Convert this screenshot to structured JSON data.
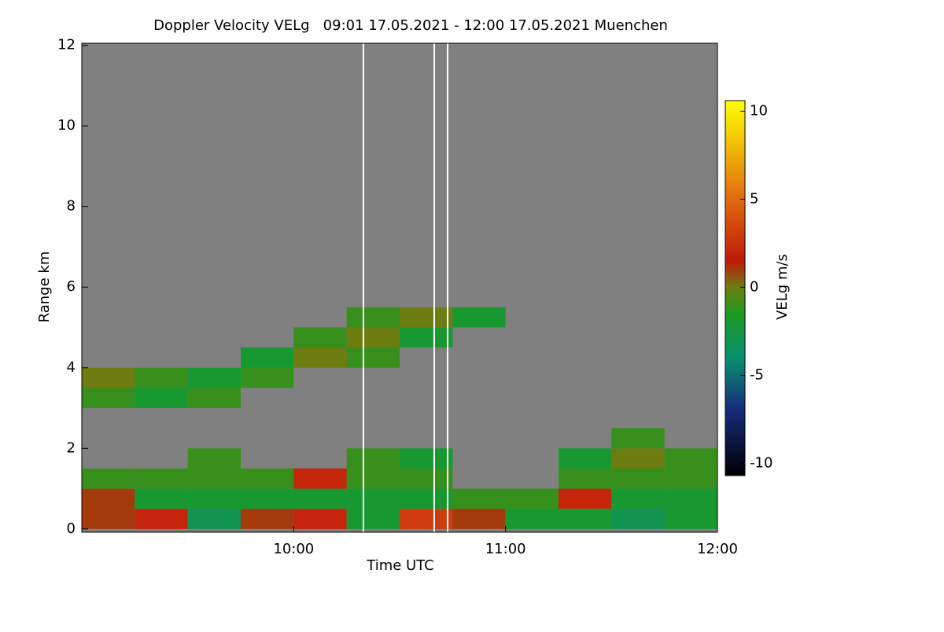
{
  "chart_data": {
    "type": "heatmap",
    "title": "Doppler Velocity VELg   09:01 17.05.2021 - 12:00 17.05.2021 Muenchen",
    "x_label": "Time UTC",
    "y_label": "Range km",
    "colorbar_label": "VELg m/s",
    "x_bins": [
      9,
      9.25,
      9.5,
      9.75,
      10,
      10.25,
      10.5,
      10.75,
      11,
      11.25,
      11.5,
      11.75,
      12
    ],
    "y_bins": [
      0,
      0.5,
      1,
      1.5,
      2,
      2.5,
      3,
      3.5,
      4,
      4.5,
      5,
      5.5,
      6
    ],
    "z": [
      [
        1,
        2,
        -3,
        1,
        2,
        -2,
        3,
        1,
        -2,
        -2,
        -3,
        -2
      ],
      [
        1,
        -2,
        -2,
        -2,
        -2,
        -2,
        -2,
        -1,
        -1,
        2,
        -2,
        -2
      ],
      [
        -1,
        -1,
        -1,
        -1,
        2,
        -1,
        -1,
        null,
        null,
        -1,
        -1,
        -1
      ],
      [
        null,
        null,
        -1,
        null,
        null,
        -1,
        -2,
        null,
        null,
        -2,
        0,
        -1
      ],
      [
        null,
        null,
        null,
        null,
        null,
        null,
        null,
        null,
        null,
        null,
        -1,
        null
      ],
      [
        null,
        null,
        null,
        null,
        null,
        null,
        null,
        null,
        null,
        null,
        null,
        null
      ],
      [
        -1,
        -2,
        -1,
        null,
        null,
        null,
        null,
        null,
        null,
        null,
        null,
        null
      ],
      [
        0,
        -1,
        -2,
        -1,
        null,
        null,
        null,
        null,
        null,
        null,
        null,
        null
      ],
      [
        null,
        null,
        null,
        -2,
        0,
        -1,
        null,
        null,
        null,
        null,
        null,
        null
      ],
      [
        null,
        null,
        null,
        null,
        -1,
        0,
        -2,
        null,
        null,
        null,
        null,
        null
      ],
      [
        null,
        null,
        null,
        null,
        null,
        -1,
        0,
        -2,
        null,
        null,
        null,
        null
      ],
      [
        null,
        null,
        null,
        null,
        null,
        null,
        null,
        null,
        null,
        null,
        null,
        null
      ]
    ],
    "xlim": [
      9,
      12
    ],
    "ylim": [
      -0.08,
      12.05
    ],
    "xticks": [
      {
        "value": 10,
        "label": "10:00"
      },
      {
        "value": 11,
        "label": "11:00"
      },
      {
        "value": 12,
        "label": "12:00"
      }
    ],
    "yticks": [
      0,
      2,
      4,
      6,
      8,
      10,
      12
    ],
    "clim": [
      -10.7,
      10.6
    ],
    "cticks": [
      -10,
      -5,
      0,
      5,
      10
    ],
    "colorscale": [
      {
        "value": -10.7,
        "color": "#000000"
      },
      {
        "value": -7,
        "color": "#152a7a"
      },
      {
        "value": -4,
        "color": "#0a9070"
      },
      {
        "value": -1.5,
        "color": "#1c9a20"
      },
      {
        "value": 0,
        "color": "#6e7d12"
      },
      {
        "value": 1.5,
        "color": "#c01a0a"
      },
      {
        "value": 5,
        "color": "#e06a10"
      },
      {
        "value": 10.6,
        "color": "#ffff00"
      }
    ],
    "background": "#808080"
  }
}
